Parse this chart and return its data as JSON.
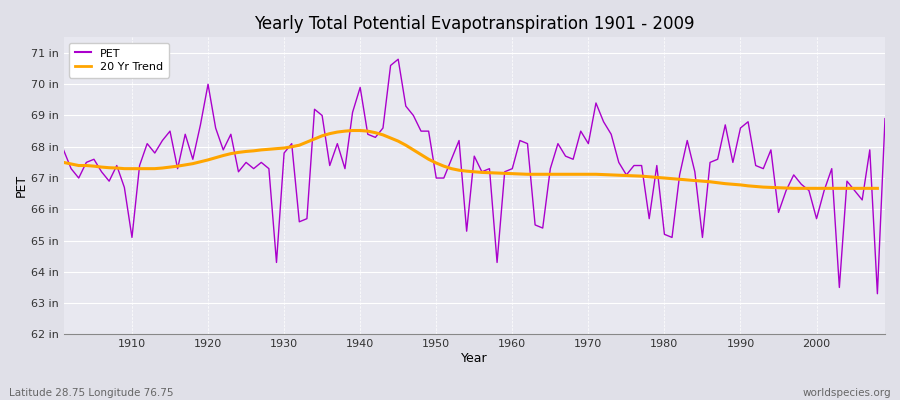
{
  "title": "Yearly Total Potential Evapotranspiration 1901 - 2009",
  "xlabel": "Year",
  "ylabel": "PET",
  "subtitle": "Latitude 28.75 Longitude 76.75",
  "watermark": "worldspecies.org",
  "pet_color": "#AA00CC",
  "trend_color": "#FFA500",
  "bg_color": "#E0E0E8",
  "plot_bg_color": "#E8E8F0",
  "ylim": [
    62,
    71.5
  ],
  "ytick_labels": [
    "62 in",
    "63 in",
    "64 in",
    "65 in",
    "66 in",
    "67 in",
    "68 in",
    "69 in",
    "70 in",
    "71 in"
  ],
  "ytick_vals": [
    62,
    63,
    64,
    65,
    66,
    67,
    68,
    69,
    70,
    71
  ],
  "years": [
    1901,
    1902,
    1903,
    1904,
    1905,
    1906,
    1907,
    1908,
    1909,
    1910,
    1911,
    1912,
    1913,
    1914,
    1915,
    1916,
    1917,
    1918,
    1919,
    1920,
    1921,
    1922,
    1923,
    1924,
    1925,
    1926,
    1927,
    1928,
    1929,
    1930,
    1931,
    1932,
    1933,
    1934,
    1935,
    1936,
    1937,
    1938,
    1939,
    1940,
    1941,
    1942,
    1943,
    1944,
    1945,
    1946,
    1947,
    1948,
    1949,
    1950,
    1951,
    1952,
    1953,
    1954,
    1955,
    1956,
    1957,
    1958,
    1959,
    1960,
    1961,
    1962,
    1963,
    1964,
    1965,
    1966,
    1967,
    1968,
    1969,
    1970,
    1971,
    1972,
    1973,
    1974,
    1975,
    1976,
    1977,
    1978,
    1979,
    1980,
    1981,
    1982,
    1983,
    1984,
    1985,
    1986,
    1987,
    1988,
    1989,
    1990,
    1991,
    1992,
    1993,
    1994,
    1995,
    1996,
    1997,
    1998,
    1999,
    2000,
    2001,
    2002,
    2003,
    2004,
    2005,
    2006,
    2007,
    2008,
    2009
  ],
  "pet_values": [
    67.9,
    67.3,
    67.0,
    67.5,
    67.6,
    67.2,
    66.9,
    67.4,
    66.7,
    65.1,
    67.4,
    68.1,
    67.8,
    68.2,
    68.5,
    67.3,
    68.4,
    67.6,
    68.7,
    70.0,
    68.6,
    67.9,
    68.4,
    67.2,
    67.5,
    67.3,
    67.5,
    67.3,
    64.3,
    67.8,
    68.1,
    65.6,
    65.7,
    69.2,
    69.0,
    67.4,
    68.1,
    67.3,
    69.1,
    69.9,
    68.4,
    68.3,
    68.6,
    70.6,
    70.8,
    69.3,
    69.0,
    68.5,
    68.5,
    67.0,
    67.0,
    67.6,
    68.2,
    65.3,
    67.7,
    67.2,
    67.3,
    64.3,
    67.2,
    67.3,
    68.2,
    68.1,
    65.5,
    65.4,
    67.3,
    68.1,
    67.7,
    67.6,
    68.5,
    68.1,
    69.4,
    68.8,
    68.4,
    67.5,
    67.1,
    67.4,
    67.4,
    65.7,
    67.4,
    65.2,
    65.1,
    67.1,
    68.2,
    67.2,
    65.1,
    67.5,
    67.6,
    68.7,
    67.5,
    68.6,
    68.8,
    67.4,
    67.3,
    67.9,
    65.9,
    66.6,
    67.1,
    66.8,
    66.6,
    65.7,
    66.6,
    67.3,
    63.5,
    66.9,
    66.6,
    66.3,
    67.9,
    63.3,
    68.9
  ],
  "trend_values": [
    67.5,
    67.45,
    67.4,
    67.4,
    67.38,
    67.35,
    67.33,
    67.32,
    67.3,
    67.3,
    67.3,
    67.3,
    67.3,
    67.32,
    67.35,
    67.38,
    67.42,
    67.46,
    67.52,
    67.58,
    67.65,
    67.72,
    67.78,
    67.82,
    67.85,
    67.87,
    67.9,
    67.92,
    67.94,
    67.96,
    68.0,
    68.05,
    68.15,
    68.25,
    68.35,
    68.42,
    68.47,
    68.5,
    68.52,
    68.52,
    68.5,
    68.45,
    68.38,
    68.28,
    68.18,
    68.05,
    67.9,
    67.75,
    67.6,
    67.48,
    67.38,
    67.3,
    67.25,
    67.22,
    67.2,
    67.18,
    67.17,
    67.16,
    67.15,
    67.14,
    67.13,
    67.12,
    67.12,
    67.12,
    67.12,
    67.12,
    67.12,
    67.12,
    67.12,
    67.12,
    67.12,
    67.11,
    67.1,
    67.09,
    67.08,
    67.07,
    67.06,
    67.04,
    67.02,
    67.0,
    66.98,
    66.96,
    66.94,
    66.92,
    66.9,
    66.88,
    66.85,
    66.82,
    66.8,
    66.78,
    66.75,
    66.73,
    66.71,
    66.7,
    66.69,
    66.68,
    66.67,
    66.67,
    66.67,
    66.67,
    66.67,
    66.67,
    66.67,
    66.67,
    66.67,
    66.67,
    66.67,
    66.67,
    null
  ]
}
